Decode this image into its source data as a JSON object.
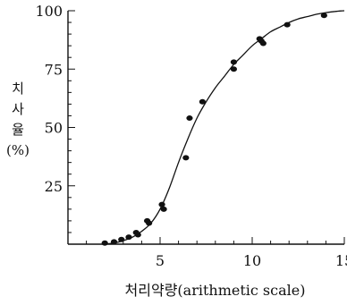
{
  "chart_data": {
    "type": "scatter",
    "title": "",
    "xlabel": "처리약량(arithmetic scale)",
    "ylabel_lines": [
      "치",
      "사",
      "율",
      "(%)"
    ],
    "xlim": [
      0,
      15
    ],
    "ylim": [
      0,
      100
    ],
    "x_ticks": [
      5,
      10,
      15
    ],
    "x_tick_labels": [
      "5",
      "10",
      "15"
    ],
    "y_ticks": [
      25,
      50,
      75,
      100
    ],
    "y_tick_labels": [
      "25",
      "50",
      "75",
      "100"
    ],
    "grid": false,
    "series": [
      {
        "kind": "points",
        "x": [
          2.0,
          2.5,
          2.9,
          3.3,
          3.7,
          3.8,
          4.3,
          4.4,
          5.1,
          5.2,
          6.4,
          6.6,
          7.3,
          9.0,
          9.0,
          10.4,
          10.5,
          10.6,
          11.9,
          13.9
        ],
        "y": [
          0.5,
          1,
          2,
          3,
          5,
          4,
          10,
          9,
          17,
          15,
          37,
          54,
          61,
          78,
          75,
          88,
          87,
          86,
          94,
          98
        ]
      },
      {
        "kind": "fitted-curve",
        "x": [
          2.0,
          2.5,
          3.0,
          3.5,
          4.0,
          4.5,
          5.0,
          5.5,
          6.0,
          6.5,
          7.0,
          7.5,
          8.0,
          8.5,
          9.0,
          9.5,
          10.0,
          10.5,
          11.0,
          11.5,
          12.0,
          12.5,
          13.0,
          13.5,
          14.0,
          14.5,
          15.0
        ],
        "y": [
          0,
          0.5,
          1.5,
          3,
          5.5,
          9,
          15,
          24,
          35,
          45,
          54,
          61,
          67,
          72,
          77,
          81,
          85,
          88,
          91,
          93,
          95,
          96.5,
          97.5,
          98.5,
          99.2,
          99.7,
          100
        ]
      }
    ]
  }
}
